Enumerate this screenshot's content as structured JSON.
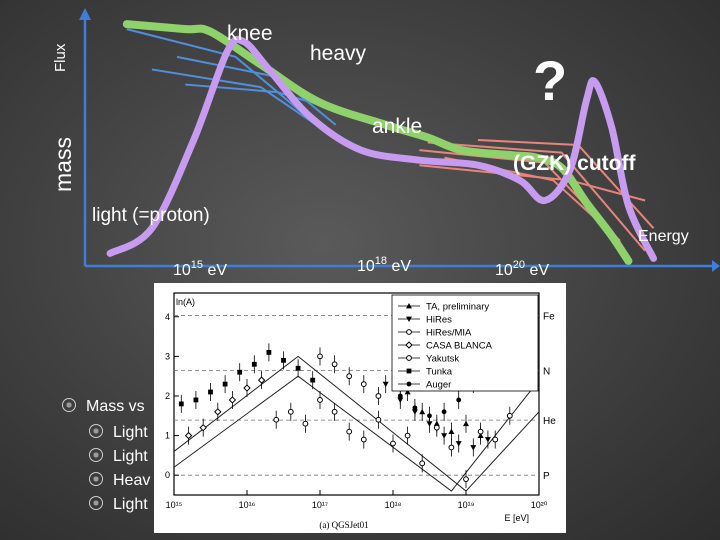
{
  "labels": {
    "flux": "Flux",
    "mass": "mass",
    "knee": "knee",
    "heavy": "heavy",
    "question": "?",
    "ankle": "ankle",
    "gzk": "(GZK) cutoff",
    "light": "light (=proton)",
    "energy": "Energy",
    "e15_base": "10",
    "e15_exp": "15",
    "e15_unit": " eV",
    "e18_base": "10",
    "e18_exp": "18",
    "e18_unit": " eV",
    "e20_base": "10",
    "e20_exp": "20",
    "e20_unit": " eV"
  },
  "bullets": {
    "main": "Mass vs",
    "sub": [
      "Light",
      "Light",
      "Heav",
      "Light"
    ]
  },
  "colors": {
    "green": "#8fd16a",
    "purple": "#c79cf0",
    "blue": "#4f8fdc",
    "salmon": "#e8857a",
    "axis": "#3d7fd8"
  },
  "chart_data": {
    "type": "scatter",
    "title": "",
    "xlabel": "E [eV]",
    "ylabel": "ln(A)",
    "xscale": "log",
    "xlim": [
      1000000000000000.0,
      1e+20
    ],
    "ylim": [
      -0.5,
      4.6
    ],
    "xticks": [
      "10¹⁵",
      "10¹⁶",
      "10¹⁷",
      "10¹⁸",
      "10¹⁹",
      "10²⁰"
    ],
    "yticks": [
      "0",
      "1",
      "2",
      "3",
      "4"
    ],
    "element_labels": [
      {
        "name": "Fe",
        "lnA": 4.03
      },
      {
        "name": "N",
        "lnA": 2.64
      },
      {
        "name": "He",
        "lnA": 1.39
      },
      {
        "name": "P",
        "lnA": 0.0
      }
    ],
    "caption": "(a) QGSJet01",
    "legend_position": "top-right",
    "series": [
      {
        "name": "TA, preliminary",
        "marker": "triangle-up",
        "points": [
          [
            18.2,
            2.1
          ],
          [
            18.4,
            1.6
          ],
          [
            18.6,
            1.3
          ],
          [
            18.8,
            1.1
          ],
          [
            19.0,
            1.3
          ],
          [
            19.2,
            1.0
          ]
        ]
      },
      {
        "name": "HiRes",
        "marker": "triangle-down",
        "points": [
          [
            17.9,
            2.3
          ],
          [
            18.1,
            1.9
          ],
          [
            18.3,
            1.6
          ],
          [
            18.5,
            1.3
          ],
          [
            18.7,
            1.0
          ],
          [
            18.9,
            0.8
          ],
          [
            19.1,
            0.7
          ],
          [
            19.3,
            0.9
          ]
        ]
      },
      {
        "name": "HiRes/MIA",
        "marker": "circle-open",
        "points": [
          [
            17.0,
            3.0
          ],
          [
            17.2,
            2.8
          ],
          [
            17.4,
            2.5
          ],
          [
            17.6,
            2.3
          ],
          [
            17.8,
            2.0
          ]
        ]
      },
      {
        "name": "CASA BLANCA",
        "marker": "diamond",
        "points": [
          [
            15.2,
            1.0
          ],
          [
            15.4,
            1.2
          ],
          [
            15.6,
            1.6
          ],
          [
            15.8,
            1.9
          ],
          [
            16.0,
            2.2
          ],
          [
            16.2,
            2.4
          ]
        ]
      },
      {
        "name": "Yakutsk",
        "marker": "circle-open",
        "points": [
          [
            16.4,
            1.4
          ],
          [
            16.6,
            1.6
          ],
          [
            16.8,
            1.3
          ],
          [
            17.0,
            1.9
          ],
          [
            17.2,
            1.6
          ],
          [
            17.4,
            1.1
          ],
          [
            17.6,
            0.9
          ],
          [
            17.8,
            1.4
          ],
          [
            18.0,
            0.8
          ],
          [
            18.2,
            1.0
          ],
          [
            18.4,
            0.3
          ],
          [
            18.6,
            1.2
          ],
          [
            18.8,
            0.7
          ],
          [
            19.0,
            -0.1
          ],
          [
            19.2,
            1.1
          ],
          [
            19.4,
            0.9
          ],
          [
            19.6,
            1.5
          ]
        ]
      },
      {
        "name": "Tunka",
        "marker": "square",
        "points": [
          [
            15.1,
            1.8
          ],
          [
            15.3,
            1.9
          ],
          [
            15.5,
            2.1
          ],
          [
            15.7,
            2.3
          ],
          [
            15.9,
            2.6
          ],
          [
            16.1,
            2.8
          ],
          [
            16.3,
            3.1
          ],
          [
            16.5,
            2.9
          ],
          [
            16.7,
            2.7
          ],
          [
            16.9,
            2.4
          ]
        ]
      },
      {
        "name": "Auger",
        "marker": "circle-filled",
        "points": [
          [
            18.1,
            2.0
          ],
          [
            18.3,
            1.7
          ],
          [
            18.5,
            1.5
          ],
          [
            18.7,
            1.6
          ],
          [
            18.9,
            1.9
          ],
          [
            19.1,
            2.3
          ],
          [
            19.3,
            2.6
          ],
          [
            19.5,
            2.9
          ]
        ]
      }
    ],
    "trend_lines": [
      [
        [
          15.0,
          0.6
        ],
        [
          16.7,
          3.0
        ],
        [
          19.0,
          -0.4
        ],
        [
          20.0,
          1.6
        ]
      ],
      [
        [
          15.0,
          0.2
        ],
        [
          16.7,
          2.5
        ],
        [
          18.8,
          -0.4
        ],
        [
          20.0,
          2.4
        ]
      ]
    ]
  },
  "sketch": {
    "xlim": [
      13.5,
      21.0
    ],
    "ylim": [
      0,
      10
    ],
    "purple_curve": [
      [
        13.8,
        0.5
      ],
      [
        14.3,
        1.5
      ],
      [
        14.8,
        5.0
      ],
      [
        15.2,
        8.5
      ],
      [
        15.4,
        8.9
      ],
      [
        15.7,
        7.8
      ],
      [
        16.2,
        5.9
      ],
      [
        16.8,
        4.6
      ],
      [
        17.5,
        4.2
      ],
      [
        18.2,
        4.0
      ],
      [
        18.7,
        3.4
      ],
      [
        19.0,
        2.6
      ],
      [
        19.3,
        3.8
      ],
      [
        19.5,
        6.6
      ],
      [
        19.6,
        7.3
      ],
      [
        19.8,
        5.5
      ],
      [
        20.0,
        2.4
      ],
      [
        20.3,
        0.3
      ]
    ],
    "green_curve": [
      [
        14.0,
        9.6
      ],
      [
        14.7,
        9.4
      ],
      [
        15.0,
        9.3
      ],
      [
        15.6,
        8.0
      ],
      [
        16.3,
        6.5
      ],
      [
        17.1,
        5.6
      ],
      [
        17.6,
        5.1
      ],
      [
        18.0,
        4.6
      ],
      [
        18.6,
        4.4
      ],
      [
        18.9,
        4.3
      ],
      [
        19.2,
        3.9
      ],
      [
        19.5,
        2.5
      ],
      [
        19.8,
        1.2
      ],
      [
        20.0,
        0.2
      ]
    ],
    "blue_lines": [
      [
        [
          14.0,
          9.4
        ],
        [
          15.3,
          8.3
        ],
        [
          16.2,
          5.8
        ]
      ],
      [
        [
          14.6,
          8.3
        ],
        [
          15.8,
          7.5
        ],
        [
          16.5,
          5.6
        ]
      ],
      [
        [
          14.3,
          7.8
        ],
        [
          15.6,
          7.1
        ],
        [
          16.4,
          5.3
        ]
      ],
      [
        [
          14.7,
          7.2
        ],
        [
          15.8,
          6.9
        ],
        [
          16.7,
          6.0
        ]
      ]
    ],
    "salmon_lines": [
      [
        [
          17.6,
          4.9
        ],
        [
          19.2,
          4.5
        ],
        [
          20.2,
          0.6
        ]
      ],
      [
        [
          17.5,
          4.6
        ],
        [
          19.0,
          4.1
        ],
        [
          19.9,
          1.0
        ]
      ],
      [
        [
          17.8,
          4.3
        ],
        [
          19.1,
          3.4
        ],
        [
          19.7,
          1.6
        ]
      ],
      [
        [
          17.5,
          4.0
        ],
        [
          19.3,
          3.4
        ],
        [
          20.2,
          2.6
        ]
      ],
      [
        [
          18.2,
          5.0
        ],
        [
          19.4,
          4.8
        ],
        [
          20.3,
          1.5
        ]
      ]
    ]
  }
}
